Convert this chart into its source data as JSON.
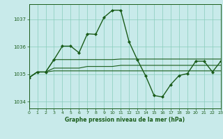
{
  "title": "Graphe pression niveau de la mer (hPa)",
  "background_color": "#c8eaea",
  "grid_color": "#88ccbb",
  "line_color": "#1a5c1a",
  "x_min": 0,
  "x_max": 23,
  "y_min": 1033.75,
  "y_max": 1037.55,
  "yticks": [
    1034,
    1035,
    1036,
    1037
  ],
  "xticks": [
    0,
    1,
    2,
    3,
    4,
    5,
    6,
    7,
    8,
    9,
    10,
    11,
    12,
    13,
    14,
    15,
    16,
    17,
    18,
    19,
    20,
    21,
    22,
    23
  ],
  "series": [
    {
      "x": [
        0,
        1,
        2,
        3,
        4,
        5,
        6,
        7,
        8,
        9,
        10,
        11,
        12,
        13,
        14,
        15,
        16,
        17,
        18,
        19,
        20,
        21,
        22,
        23
      ],
      "y": [
        1034.87,
        1035.08,
        1035.08,
        1035.53,
        1036.02,
        1036.02,
        1035.78,
        1036.47,
        1036.45,
        1037.07,
        1037.33,
        1037.33,
        1036.18,
        1035.52,
        1034.93,
        1034.22,
        1034.17,
        1034.62,
        1034.95,
        1035.02,
        1035.47,
        1035.47,
        1035.08,
        1035.47
      ],
      "marker": "D",
      "markersize": 2.0,
      "linewidth": 1.0
    },
    {
      "x": [
        0,
        1,
        2,
        3,
        4,
        5,
        6,
        7,
        8,
        9,
        10,
        11,
        12,
        13,
        14,
        15,
        16,
        17,
        18,
        19,
        20,
        21,
        22,
        23
      ],
      "y": [
        1034.87,
        1035.08,
        1035.08,
        1035.53,
        1035.53,
        1035.53,
        1035.53,
        1035.53,
        1035.53,
        1035.53,
        1035.53,
        1035.55,
        1035.55,
        1035.55,
        1035.55,
        1035.55,
        1035.55,
        1035.55,
        1035.55,
        1035.55,
        1035.55,
        1035.55,
        1035.55,
        1035.55
      ],
      "marker": null,
      "linewidth": 0.8
    },
    {
      "x": [
        0,
        1,
        2,
        3,
        4,
        5,
        6,
        7,
        8,
        9,
        10,
        11,
        12,
        13,
        14,
        15,
        16,
        17,
        18,
        19,
        20,
        21,
        22,
        23
      ],
      "y": [
        1034.87,
        1035.08,
        1035.08,
        1035.22,
        1035.22,
        1035.22,
        1035.22,
        1035.28,
        1035.28,
        1035.28,
        1035.28,
        1035.32,
        1035.32,
        1035.32,
        1035.32,
        1035.32,
        1035.32,
        1035.32,
        1035.32,
        1035.32,
        1035.32,
        1035.32,
        1035.32,
        1035.32
      ],
      "marker": null,
      "linewidth": 0.8
    },
    {
      "x": [
        0,
        1,
        2,
        3,
        4,
        5,
        6,
        7,
        8,
        9,
        10,
        11,
        12,
        13,
        14,
        15,
        16,
        17,
        18,
        19,
        20,
        21,
        22,
        23
      ],
      "y": [
        1034.87,
        1035.08,
        1035.08,
        1035.12,
        1035.12,
        1035.12,
        1035.12,
        1035.12,
        1035.12,
        1035.12,
        1035.12,
        1035.12,
        1035.12,
        1035.12,
        1035.12,
        1035.12,
        1035.12,
        1035.12,
        1035.12,
        1035.12,
        1035.12,
        1035.12,
        1035.12,
        1035.12
      ],
      "marker": null,
      "linewidth": 0.8
    }
  ]
}
